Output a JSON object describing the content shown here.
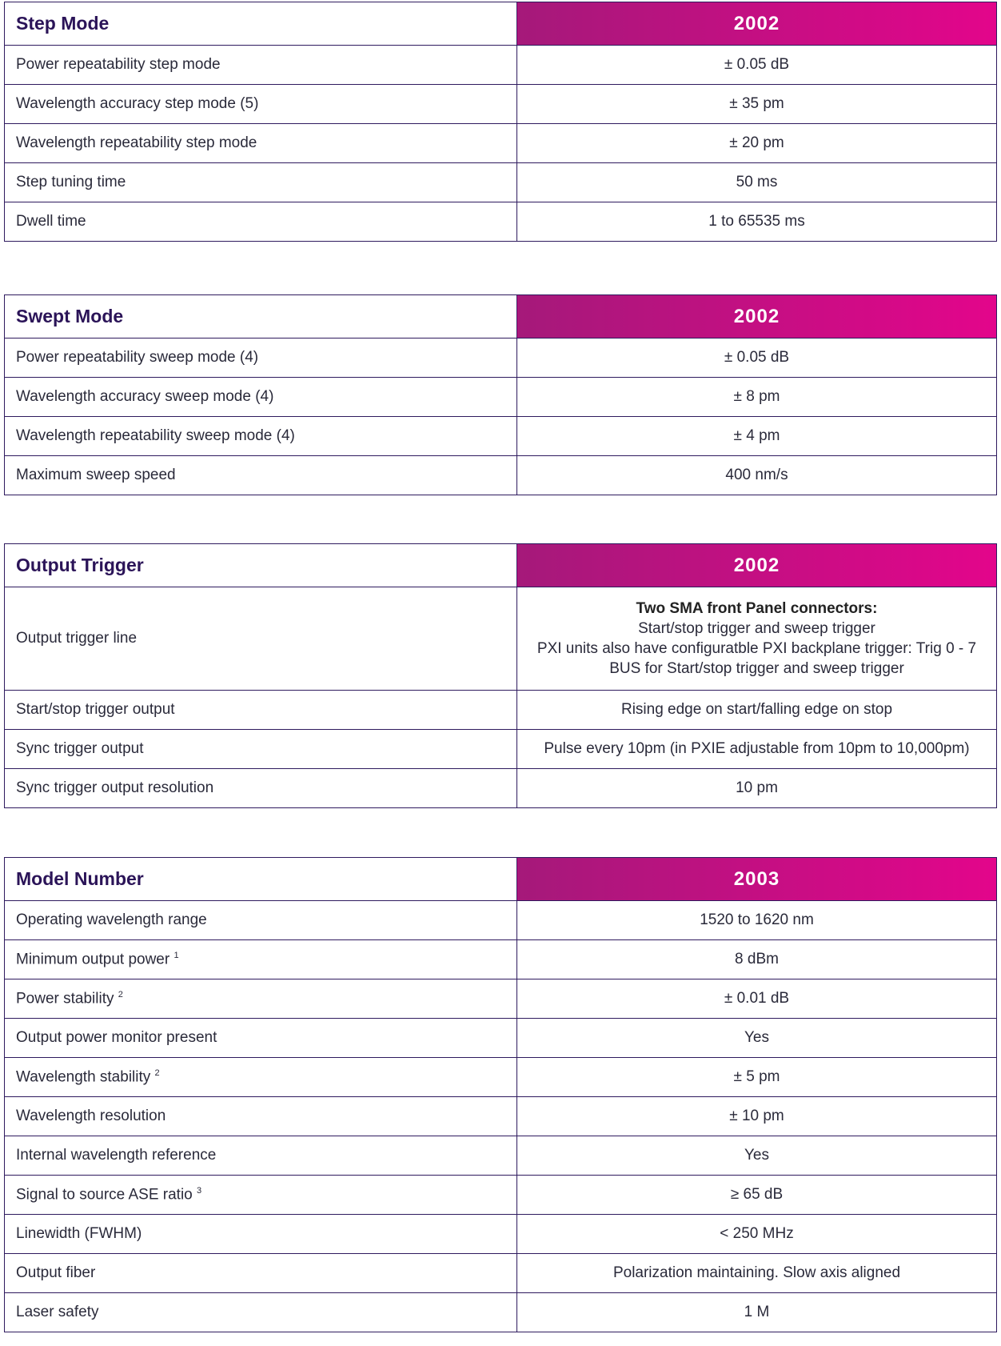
{
  "tables": [
    {
      "title": "Step Mode",
      "model": "2002",
      "rows": [
        {
          "label": "Power repeatability step mode",
          "value": "± 0.05 dB"
        },
        {
          "label": "Wavelength accuracy step mode (5)",
          "value": "± 35 pm"
        },
        {
          "label": "Wavelength repeatability step mode",
          "value": "± 20 pm"
        },
        {
          "label": "Step tuning time",
          "value": "50 ms"
        },
        {
          "label": "Dwell time",
          "value": "1 to 65535 ms"
        }
      ]
    },
    {
      "title": "Swept Mode",
      "model": "2002",
      "rows": [
        {
          "label": "Power repeatability sweep mode (4)",
          "value": "± 0.05 dB"
        },
        {
          "label": "Wavelength accuracy sweep mode (4)",
          "value": "± 8 pm"
        },
        {
          "label": "Wavelength repeatability sweep mode (4)",
          "value": "± 4 pm"
        },
        {
          "label": "Maximum sweep speed",
          "value": "400 nm/s"
        }
      ]
    },
    {
      "title": "Output Trigger",
      "model": "2002",
      "rows": [
        {
          "label": "Output trigger line",
          "value_heading": "Two SMA front Panel connectors:",
          "value_line2": "Start/stop trigger and sweep trigger",
          "value_line3": "PXI units also have configuratble PXI backplane trigger: Trig 0 - 7 BUS for Start/stop trigger and sweep trigger"
        },
        {
          "label": "Start/stop trigger output",
          "value": "Rising edge on start/falling edge on stop"
        },
        {
          "label": "Sync trigger output",
          "value": "Pulse every 10pm (in PXIE adjustable from 10pm to 10,000pm)"
        },
        {
          "label": "Sync trigger output resolution",
          "value": "10 pm"
        }
      ]
    },
    {
      "title": "Model Number",
      "model": "2003",
      "rows": [
        {
          "label": "Operating wavelength range",
          "value": "1520 to 1620 nm"
        },
        {
          "label": "Minimum output power",
          "sup": "1",
          "value": "8 dBm"
        },
        {
          "label": "Power stability",
          "sup": "2",
          "value": "± 0.01 dB"
        },
        {
          "label": "Output power monitor present",
          "value": "Yes"
        },
        {
          "label": "Wavelength stability",
          "sup": "2",
          "value": "± 5 pm"
        },
        {
          "label": "Wavelength resolution",
          "value": "± 10 pm"
        },
        {
          "label": "Internal wavelength reference",
          "value": "Yes"
        },
        {
          "label": "Signal to source ASE ratio",
          "sup": "3",
          "value": "≥ 65 dB"
        },
        {
          "label": "Linewidth (FWHM)",
          "value": "< 250 MHz"
        },
        {
          "label": "Output fiber",
          "value": "Polarization maintaining. Slow axis aligned"
        },
        {
          "label": "Laser safety",
          "value": "1 M"
        }
      ]
    }
  ],
  "colors": {
    "border": "#2e1a5e",
    "header_gradient_start": "#a5197a",
    "header_gradient_end": "#e3058b",
    "title_text": "#2b1458"
  }
}
